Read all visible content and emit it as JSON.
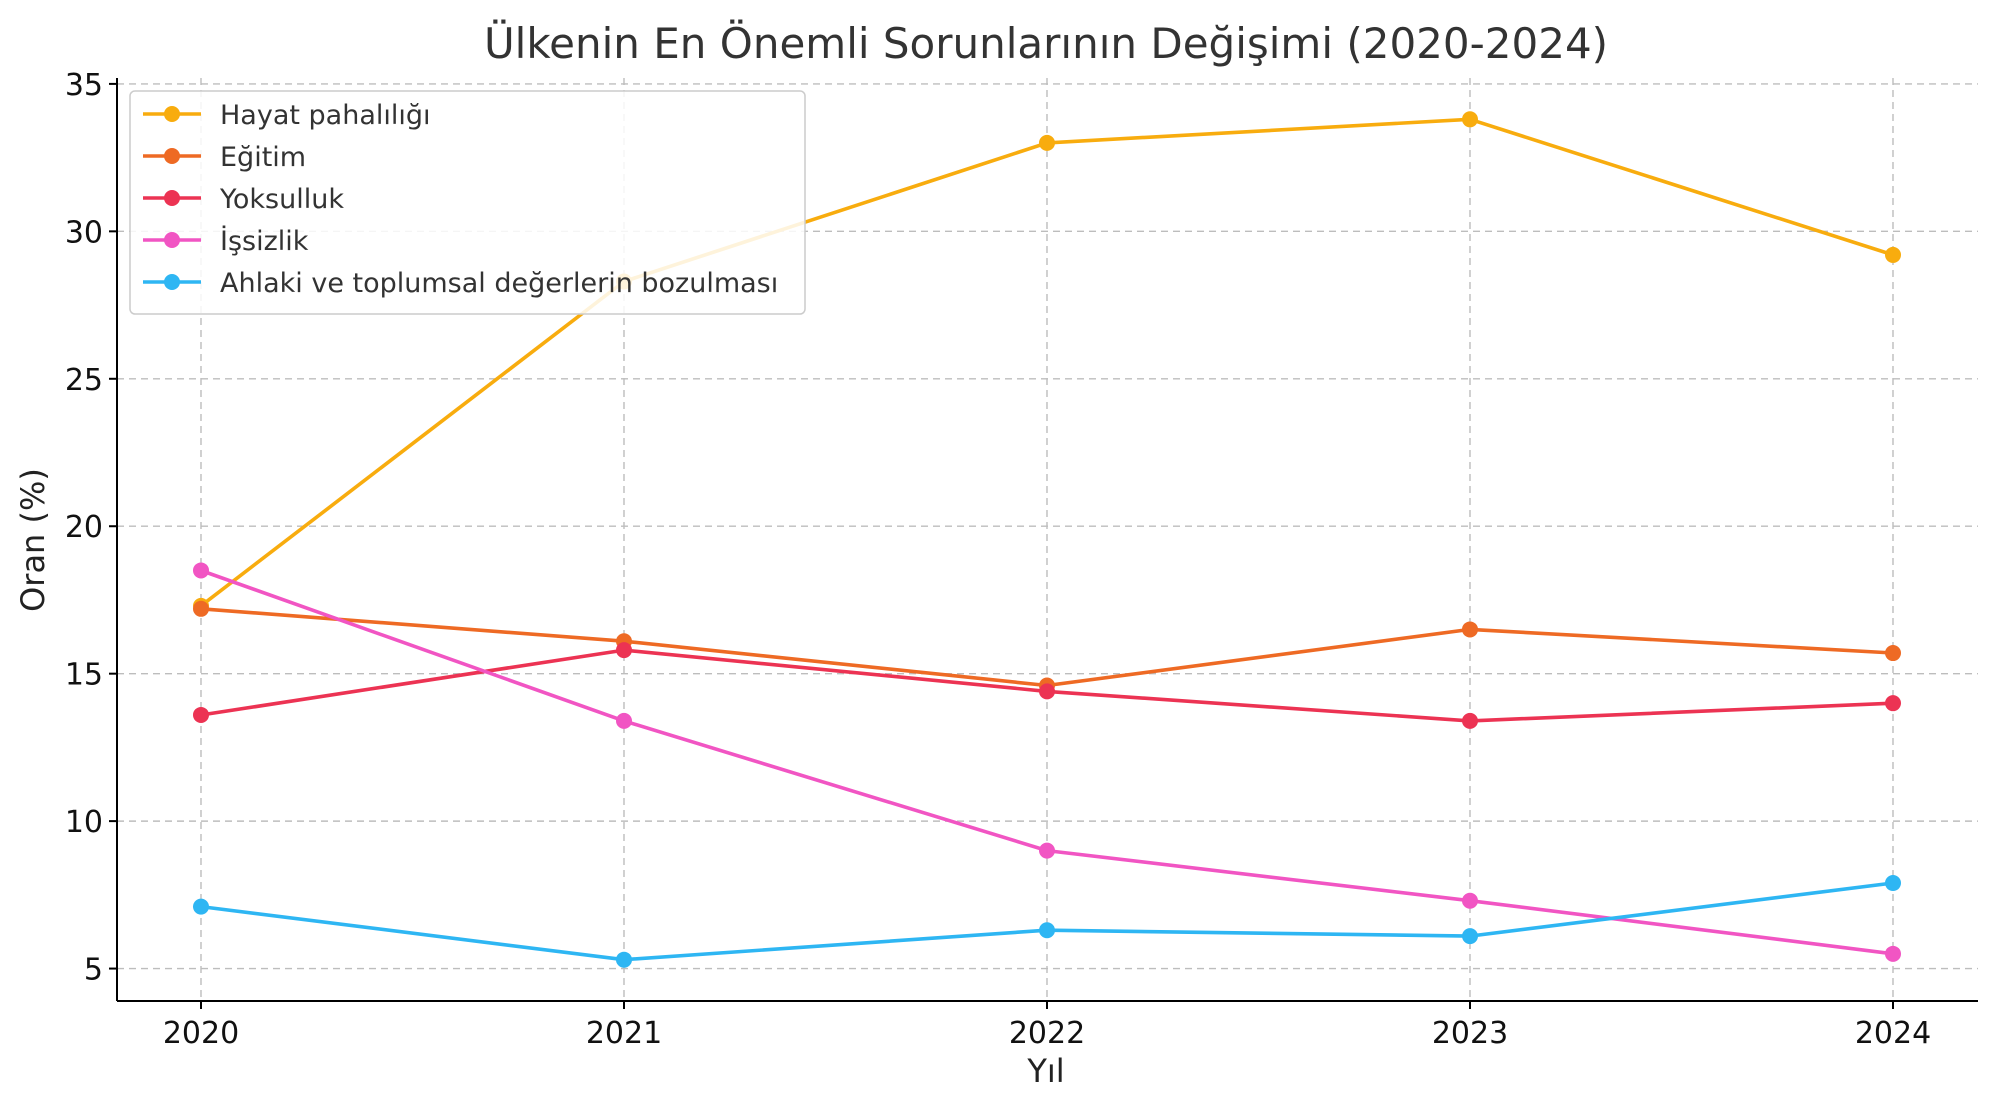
{
  "chart_data": {
    "type": "line",
    "title": "Ülkenin En Önemli Sorunlarının Değişimi (2020-2024)",
    "xlabel": "Yıl",
    "ylabel": "Oran (%)",
    "x": [
      "2020",
      "2021",
      "2022",
      "2023",
      "2024"
    ],
    "ylim": [
      3.9,
      35.2
    ],
    "yticks": [
      5,
      10,
      15,
      20,
      25,
      30,
      35
    ],
    "grid": true,
    "legend_position": "top-left",
    "series": [
      {
        "name": "Hayat pahalılığı",
        "color": "#F8AC0E",
        "values": [
          17.3,
          28.3,
          33.0,
          33.8,
          29.2
        ]
      },
      {
        "name": "Eğitim",
        "color": "#EE6A24",
        "values": [
          17.2,
          16.1,
          14.6,
          16.5,
          15.7
        ]
      },
      {
        "name": "Yoksulluk",
        "color": "#EC3353",
        "values": [
          13.6,
          15.8,
          14.4,
          13.4,
          14.0
        ]
      },
      {
        "name": "İşsizlik",
        "color": "#F155C3",
        "values": [
          18.5,
          13.4,
          9.0,
          7.3,
          5.5
        ]
      },
      {
        "name": "Ahlaki ve toplumsal değerlerin bozulması",
        "color": "#2EB6F3",
        "values": [
          7.1,
          5.3,
          6.3,
          6.1,
          7.9
        ]
      }
    ]
  }
}
